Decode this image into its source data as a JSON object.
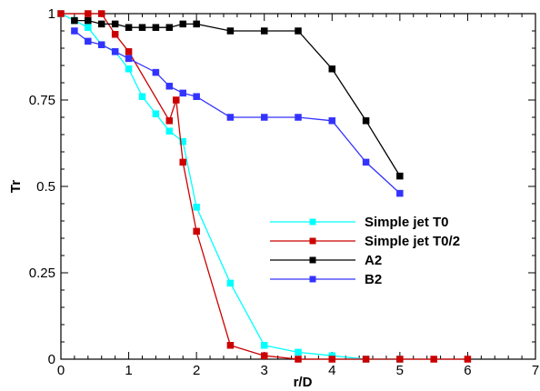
{
  "chart_data": {
    "type": "line",
    "title": "",
    "xlabel": "r/D",
    "ylabel": "Tr",
    "xlim": [
      0,
      7
    ],
    "ylim": [
      0,
      1
    ],
    "xticks": [
      "0",
      "1",
      "2",
      "3",
      "4",
      "5",
      "6",
      "7"
    ],
    "yticks": [
      "0",
      "0.25",
      "0.5",
      "0.75",
      "1"
    ],
    "grid": false,
    "legend_position": "center-right",
    "series": [
      {
        "name": "Simple jet T0",
        "color": "#00ffff",
        "marker": "square",
        "x": [
          0,
          0.2,
          0.4,
          0.6,
          0.8,
          1.0,
          1.2,
          1.4,
          1.6,
          1.8,
          2.0,
          2.5,
          3.0,
          3.5,
          4.0,
          4.5,
          5.0
        ],
        "y": [
          1.0,
          0.98,
          0.96,
          0.91,
          0.89,
          0.84,
          0.76,
          0.71,
          0.66,
          0.63,
          0.44,
          0.22,
          0.04,
          0.02,
          0.01,
          0.0,
          0.0
        ]
      },
      {
        "name": "Simple jet T0/2",
        "color": "#cc0000",
        "marker": "square",
        "x": [
          0,
          0.4,
          0.6,
          0.8,
          1.0,
          1.6,
          1.7,
          1.8,
          2.0,
          2.5,
          3.0,
          3.5,
          4.0,
          4.5,
          5.0,
          5.5,
          6.0
        ],
        "y": [
          1.0,
          1.0,
          1.0,
          0.94,
          0.89,
          0.69,
          0.75,
          0.57,
          0.37,
          0.04,
          0.01,
          0.0,
          0.0,
          0.0,
          0.0,
          0.0,
          0.0
        ]
      },
      {
        "name": "A2",
        "color": "#000000",
        "marker": "square",
        "x": [
          0.2,
          0.4,
          0.6,
          0.8,
          1.0,
          1.2,
          1.4,
          1.6,
          1.8,
          2.0,
          2.5,
          3.0,
          3.5,
          4.0,
          4.5,
          5.0
        ],
        "y": [
          0.98,
          0.98,
          0.97,
          0.97,
          0.96,
          0.96,
          0.96,
          0.96,
          0.97,
          0.97,
          0.95,
          0.95,
          0.95,
          0.84,
          0.69,
          0.53
        ]
      },
      {
        "name": "B2",
        "color": "#3333ff",
        "marker": "square",
        "x": [
          0.2,
          0.4,
          0.6,
          0.8,
          1.0,
          1.4,
          1.6,
          1.8,
          2.0,
          2.5,
          3.0,
          3.5,
          4.0,
          4.5,
          5.0
        ],
        "y": [
          0.95,
          0.92,
          0.91,
          0.89,
          0.87,
          0.83,
          0.79,
          0.77,
          0.76,
          0.7,
          0.7,
          0.7,
          0.69,
          0.57,
          0.48
        ]
      }
    ]
  }
}
